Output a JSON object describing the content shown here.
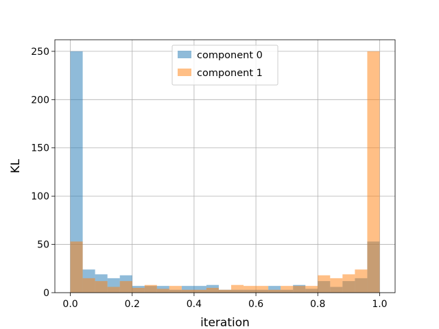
{
  "chart_data": {
    "type": "bar",
    "xlabel": "iteration",
    "ylabel": "KL",
    "xlim": [
      -0.05,
      1.05
    ],
    "ylim": [
      0,
      262
    ],
    "grid": true,
    "legend_position": "top-center",
    "xticks": [
      "0.0",
      "0.2",
      "0.4",
      "0.6",
      "0.8",
      "1.0"
    ],
    "yticks": [
      "0",
      "50",
      "100",
      "150",
      "200",
      "250"
    ],
    "bin_width": 0.04,
    "bin_starts": [
      0.0,
      0.04,
      0.08,
      0.12,
      0.16,
      0.2,
      0.24,
      0.28,
      0.32,
      0.36,
      0.4,
      0.44,
      0.48,
      0.52,
      0.56,
      0.6,
      0.64,
      0.68,
      0.72,
      0.76,
      0.8,
      0.84,
      0.88,
      0.92,
      0.96
    ],
    "series": [
      {
        "name": "component 0",
        "color": "#1f77b4",
        "opacity": 0.5,
        "values": [
          250,
          24,
          19,
          15,
          18,
          7,
          7,
          7,
          3,
          7,
          7,
          8,
          3,
          3,
          3,
          3,
          7,
          3,
          8,
          4,
          12,
          6,
          12,
          15,
          53
        ]
      },
      {
        "name": "component 1",
        "color": "#ff7f0e",
        "opacity": 0.5,
        "values": [
          53,
          15,
          12,
          6,
          12,
          5,
          8,
          4,
          7,
          3,
          3,
          5,
          3,
          8,
          7,
          7,
          3,
          7,
          7,
          7,
          18,
          15,
          19,
          24,
          250
        ]
      }
    ]
  }
}
